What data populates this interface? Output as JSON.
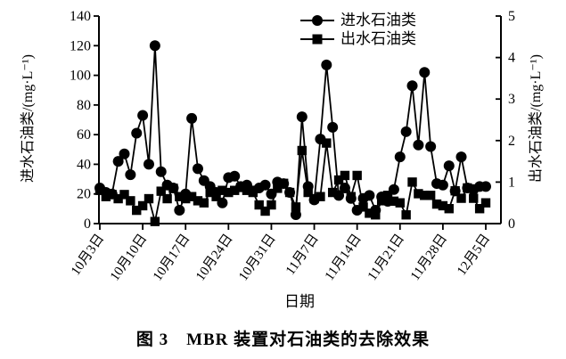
{
  "figure": {
    "caption": "图 3　MBR 装置对石油类的去除效果"
  },
  "chart_data": {
    "type": "line",
    "title": "图 3　MBR 装置对石油类的去除效果",
    "xlabel": "日期",
    "left_axis": {
      "label": "进水石油类/(mg·L⁻¹)",
      "min": 0,
      "max": 140,
      "ticks": [
        0,
        20,
        40,
        60,
        80,
        100,
        120,
        140
      ]
    },
    "right_axis": {
      "label": "出水石油类/(mg·L⁻¹)",
      "min": 0,
      "max": 5,
      "ticks": [
        0,
        1,
        2,
        3,
        4,
        5
      ]
    },
    "x_axis": {
      "unit": "days offset from 10月3日",
      "tick_days": [
        0,
        7,
        14,
        21,
        28,
        35,
        42,
        49,
        56,
        63
      ],
      "tick_labels": [
        "10月3日",
        "10月10日",
        "10月17日",
        "10月24日",
        "10月31日",
        "11月7日",
        "11月14日",
        "11月21日",
        "11月28日",
        "12月5日"
      ],
      "label_rotation_deg": -55
    },
    "legend": {
      "position": "top-center",
      "border": false
    },
    "ink_color": "#000000",
    "series": [
      {
        "name": "进水石油类",
        "axis": "left",
        "marker": "circle",
        "color": "#000000",
        "points": [
          [
            0,
            24
          ],
          [
            1,
            21
          ],
          [
            2,
            20
          ],
          [
            3,
            42
          ],
          [
            4,
            47
          ],
          [
            5,
            33
          ],
          [
            6,
            61
          ],
          [
            7,
            73
          ],
          [
            8,
            40
          ],
          [
            9,
            120
          ],
          [
            10,
            35
          ],
          [
            11,
            26
          ],
          [
            12,
            24
          ],
          [
            13,
            9
          ],
          [
            14,
            20
          ],
          [
            15,
            71
          ],
          [
            16,
            37
          ],
          [
            17,
            29
          ],
          [
            18,
            25
          ],
          [
            19,
            21
          ],
          [
            20,
            14
          ],
          [
            21,
            31
          ],
          [
            22,
            32
          ],
          [
            23,
            25
          ],
          [
            24,
            26
          ],
          [
            25,
            22
          ],
          [
            26,
            24
          ],
          [
            27,
            26
          ],
          [
            28,
            20
          ],
          [
            29,
            28
          ],
          [
            30,
            27
          ],
          [
            31,
            21
          ],
          [
            32,
            6
          ],
          [
            33,
            72
          ],
          [
            34,
            25
          ],
          [
            35,
            16
          ],
          [
            36,
            57
          ],
          [
            37,
            107
          ],
          [
            38,
            65
          ],
          [
            39,
            19
          ],
          [
            40,
            24
          ],
          [
            41,
            17
          ],
          [
            42,
            9
          ],
          [
            43,
            17
          ],
          [
            44,
            19
          ],
          [
            45,
            9
          ],
          [
            46,
            18
          ],
          [
            47,
            15
          ],
          [
            48,
            23
          ],
          [
            49,
            45
          ],
          [
            50,
            62
          ],
          [
            51,
            93
          ],
          [
            52,
            53
          ],
          [
            53,
            102
          ],
          [
            54,
            52
          ],
          [
            55,
            27
          ],
          [
            56,
            26
          ],
          [
            57,
            39
          ],
          [
            58,
            22
          ],
          [
            59,
            45
          ],
          [
            60,
            24
          ],
          [
            61,
            23
          ],
          [
            62,
            25
          ],
          [
            63,
            25
          ]
        ]
      },
      {
        "name": "出水石油类",
        "axis": "right",
        "marker": "square",
        "color": "#000000",
        "points": [
          [
            0,
            0.8
          ],
          [
            1,
            0.65
          ],
          [
            2,
            0.7
          ],
          [
            3,
            0.6
          ],
          [
            4,
            0.7
          ],
          [
            5,
            0.55
          ],
          [
            6,
            0.32
          ],
          [
            7,
            0.43
          ],
          [
            8,
            0.6
          ],
          [
            9,
            0.05
          ],
          [
            10,
            0.78
          ],
          [
            11,
            0.6
          ],
          [
            12,
            0.85
          ],
          [
            13,
            0.65
          ],
          [
            14,
            0.6
          ],
          [
            15,
            0.65
          ],
          [
            16,
            0.55
          ],
          [
            17,
            0.5
          ],
          [
            18,
            0.75
          ],
          [
            19,
            0.65
          ],
          [
            20,
            0.8
          ],
          [
            21,
            0.75
          ],
          [
            22,
            0.8
          ],
          [
            23,
            0.87
          ],
          [
            24,
            0.8
          ],
          [
            25,
            0.75
          ],
          [
            26,
            0.45
          ],
          [
            27,
            0.3
          ],
          [
            28,
            0.45
          ],
          [
            29,
            0.85
          ],
          [
            30,
            0.97
          ],
          [
            31,
            0.75
          ],
          [
            32,
            0.4
          ],
          [
            33,
            1.76
          ],
          [
            34,
            0.75
          ],
          [
            35,
            0.6
          ],
          [
            36,
            0.65
          ],
          [
            37,
            1.94
          ],
          [
            38,
            0.75
          ],
          [
            39,
            1.05
          ],
          [
            40,
            1.16
          ],
          [
            41,
            0.65
          ],
          [
            42,
            1.16
          ],
          [
            43,
            0.4
          ],
          [
            44,
            0.25
          ],
          [
            45,
            0.21
          ],
          [
            46,
            0.55
          ],
          [
            47,
            0.68
          ],
          [
            48,
            0.54
          ],
          [
            49,
            0.5
          ],
          [
            50,
            0.21
          ],
          [
            51,
            1.0
          ],
          [
            52,
            0.72
          ],
          [
            53,
            0.68
          ],
          [
            54,
            0.68
          ],
          [
            55,
            0.47
          ],
          [
            56,
            0.43
          ],
          [
            57,
            0.36
          ],
          [
            58,
            0.79
          ],
          [
            59,
            0.61
          ],
          [
            60,
            0.86
          ],
          [
            61,
            0.61
          ],
          [
            62,
            0.36
          ],
          [
            63,
            0.5
          ]
        ]
      }
    ]
  }
}
